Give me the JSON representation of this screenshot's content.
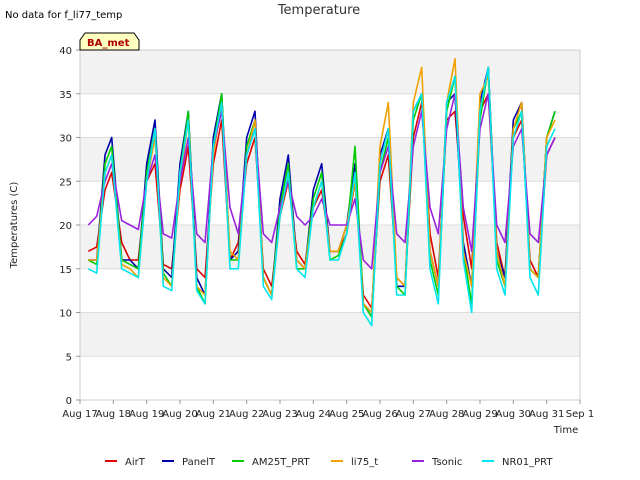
{
  "chart_data": {
    "type": "line",
    "title": "Temperature",
    "note": "No data for f_li77_temp",
    "badge": "BA_met",
    "xlabel": "Time",
    "ylabel": "Temperatures (C)",
    "ylim": [
      0,
      40
    ],
    "yticks": [
      0,
      5,
      10,
      15,
      20,
      25,
      30,
      35,
      40
    ],
    "xlim": [
      0,
      15
    ],
    "xticks": [
      {
        "x": 0,
        "label": "Aug 17"
      },
      {
        "x": 1,
        "label": "Aug 18"
      },
      {
        "x": 2,
        "label": "Aug 19"
      },
      {
        "x": 3,
        "label": "Aug 20"
      },
      {
        "x": 4,
        "label": "Aug 21"
      },
      {
        "x": 5,
        "label": "Aug 22"
      },
      {
        "x": 6,
        "label": "Aug 23"
      },
      {
        "x": 7,
        "label": "Aug 24"
      },
      {
        "x": 8,
        "label": "Aug 25"
      },
      {
        "x": 9,
        "label": "Aug 26"
      },
      {
        "x": 10,
        "label": "Aug 27"
      },
      {
        "x": 11,
        "label": "Aug 28"
      },
      {
        "x": 12,
        "label": "Aug 29"
      },
      {
        "x": 13,
        "label": "Aug 30"
      },
      {
        "x": 14,
        "label": "Aug 31"
      },
      {
        "x": 15,
        "label": "Sep 1"
      }
    ],
    "grid": true,
    "legend_position": "bottom",
    "series": [
      {
        "name": "AirT",
        "color": "#dd0000",
        "x": [
          0.25,
          0.5,
          0.75,
          0.95,
          1.25,
          1.5,
          1.75,
          2.0,
          2.25,
          2.5,
          2.75,
          3.0,
          3.25,
          3.5,
          3.75,
          4.0,
          4.25,
          4.5,
          4.75,
          5.0,
          5.25,
          5.5,
          5.75,
          6.0,
          6.25,
          6.5,
          6.75,
          7.0,
          7.25,
          7.5,
          7.75,
          8.0,
          8.25,
          8.5,
          8.75,
          9.0,
          9.25,
          9.5,
          9.75,
          10.0,
          10.25,
          10.5,
          10.75,
          11.0,
          11.25,
          11.5,
          11.75,
          12.0,
          12.25,
          12.5,
          12.75,
          13.0,
          13.25,
          13.5,
          13.75,
          14.0,
          14.25
        ],
        "y": [
          17,
          17.5,
          24,
          26,
          18,
          16,
          16,
          25,
          27,
          15.5,
          15,
          24,
          29,
          15,
          14,
          27,
          32,
          16,
          18,
          27,
          30,
          15,
          13,
          21,
          25,
          17,
          15.5,
          22,
          24,
          17,
          17,
          19,
          25,
          12,
          10.5,
          25,
          28,
          14,
          13,
          30,
          34,
          19,
          14,
          32,
          33,
          21,
          15,
          33,
          35,
          18,
          14,
          30,
          32,
          16,
          14,
          28,
          30
        ]
      },
      {
        "name": "PanelT",
        "color": "#0000aa",
        "x": [
          0.25,
          0.5,
          0.75,
          0.95,
          1.25,
          1.5,
          1.75,
          2.0,
          2.25,
          2.5,
          2.75,
          3.0,
          3.25,
          3.5,
          3.75,
          4.0,
          4.25,
          4.5,
          4.75,
          5.0,
          5.25,
          5.5,
          5.75,
          6.0,
          6.25,
          6.5,
          6.75,
          7.0,
          7.25,
          7.5,
          7.75,
          8.0,
          8.25,
          8.5,
          8.75,
          9.0,
          9.25,
          9.5,
          9.75,
          10.0,
          10.25,
          10.5,
          10.75,
          11.0,
          11.25,
          11.5,
          11.75,
          12.0,
          12.25,
          12.5,
          12.75,
          13.0,
          13.25,
          13.5,
          13.75,
          14.0,
          14.25
        ],
        "y": [
          16,
          16,
          28,
          30,
          16,
          16,
          15,
          27,
          32,
          15,
          14,
          27,
          33,
          14,
          12,
          30,
          35,
          16,
          17,
          30,
          33,
          14,
          12,
          23,
          28,
          16,
          15,
          24,
          27,
          17,
          17,
          20,
          27,
          11,
          10,
          28,
          31,
          13,
          13,
          33,
          35,
          17,
          13,
          34,
          35,
          18,
          13,
          34,
          38,
          17,
          14,
          32,
          34,
          15,
          14,
          30,
          33
        ]
      },
      {
        "name": "AM25T_PRT",
        "color": "#00cc00",
        "x": [
          0.25,
          0.5,
          0.75,
          0.95,
          1.25,
          1.5,
          1.75,
          2.0,
          2.25,
          2.5,
          2.75,
          3.0,
          3.25,
          3.5,
          3.75,
          4.0,
          4.25,
          4.5,
          4.75,
          5.0,
          5.25,
          5.5,
          5.75,
          6.0,
          6.25,
          6.5,
          6.75,
          7.0,
          7.25,
          7.5,
          7.75,
          8.0,
          8.25,
          8.5,
          8.75,
          9.0,
          9.25,
          9.5,
          9.75,
          10.0,
          10.25,
          10.5,
          10.75,
          11.0,
          11.25,
          11.5,
          11.75,
          12.0,
          12.25,
          12.5,
          12.75,
          13.0,
          13.25,
          13.5,
          13.75,
          14.0,
          14.25
        ],
        "y": [
          16,
          15.5,
          27,
          29,
          16,
          15.5,
          15,
          26,
          31,
          14.5,
          13,
          26,
          33,
          13,
          11,
          29,
          35,
          16,
          16,
          29,
          32,
          14,
          12,
          22,
          27,
          15,
          15,
          23,
          26,
          16,
          16.5,
          19,
          29,
          11,
          9.5,
          26,
          30,
          13,
          12,
          32,
          35,
          16,
          12,
          33,
          37,
          17,
          11,
          32,
          38,
          16,
          13,
          31,
          33,
          15,
          14,
          30,
          33
        ]
      },
      {
        "name": "li75_t",
        "color": "#f0a000",
        "x": [
          0.25,
          0.5,
          0.75,
          0.95,
          1.25,
          1.5,
          1.75,
          2.0,
          2.25,
          2.5,
          2.75,
          3.0,
          3.25,
          3.5,
          3.75,
          4.0,
          4.25,
          4.5,
          4.75,
          5.0,
          5.25,
          5.5,
          5.75,
          6.0,
          6.25,
          6.5,
          6.75,
          7.0,
          7.25,
          7.5,
          7.75,
          8.0,
          8.25,
          8.5,
          8.75,
          9.0,
          9.25,
          9.5,
          9.75,
          10.0,
          10.25,
          10.5,
          10.75,
          11.0,
          11.25,
          11.5,
          11.75,
          12.0,
          12.25,
          12.5,
          12.75,
          13.0,
          13.25,
          13.5,
          13.75,
          14.0,
          14.25
        ],
        "y": [
          16,
          16,
          26,
          28,
          15.5,
          15,
          14,
          25,
          30,
          14,
          13,
          25,
          32,
          13,
          12,
          28,
          34,
          17,
          16,
          28,
          32,
          14,
          12,
          21,
          26,
          16,
          15,
          22,
          25,
          17,
          17,
          20,
          25,
          11,
          10,
          29,
          34,
          14,
          13,
          34,
          38,
          17,
          13,
          34,
          39,
          17,
          13,
          35,
          37,
          17,
          13,
          31,
          34,
          15,
          14,
          30,
          32
        ]
      },
      {
        "name": "Tsonic",
        "color": "#9922dd",
        "x": [
          0.25,
          0.5,
          0.75,
          0.95,
          1.25,
          1.5,
          1.75,
          2.0,
          2.25,
          2.5,
          2.75,
          3.0,
          3.25,
          3.5,
          3.75,
          4.0,
          4.25,
          4.5,
          4.75,
          5.0,
          5.25,
          5.5,
          5.75,
          6.0,
          6.25,
          6.5,
          6.75,
          7.0,
          7.25,
          7.5,
          7.75,
          8.0,
          8.25,
          8.5,
          8.75,
          9.0,
          9.25,
          9.5,
          9.75,
          10.0,
          10.25,
          10.5,
          10.75,
          11.0,
          11.25,
          11.5,
          11.75,
          12.0,
          12.25,
          12.5,
          12.75,
          13.0,
          13.25,
          13.5,
          13.75,
          14.0,
          14.25
        ],
        "y": [
          20,
          21,
          25,
          27,
          20.5,
          20,
          19.5,
          25,
          28,
          19,
          18.5,
          25,
          30,
          19,
          18,
          29,
          33,
          22,
          19,
          28,
          31,
          19,
          18,
          22,
          25,
          21,
          20,
          21,
          23,
          20,
          20,
          20,
          23,
          16,
          15,
          26,
          29,
          19,
          18,
          29,
          33,
          22,
          19,
          31,
          35,
          22,
          17,
          31,
          35,
          20,
          18,
          29,
          31,
          19,
          18,
          28,
          30
        ]
      },
      {
        "name": "NR01_PRT",
        "color": "#00e5ee",
        "x": [
          0.25,
          0.5,
          0.75,
          0.95,
          1.25,
          1.5,
          1.75,
          2.0,
          2.25,
          2.5,
          2.75,
          3.0,
          3.25,
          3.5,
          3.75,
          4.0,
          4.25,
          4.5,
          4.75,
          5.0,
          5.25,
          5.5,
          5.75,
          6.0,
          6.25,
          6.5,
          6.75,
          7.0,
          7.25,
          7.5,
          7.75,
          8.0,
          8.25,
          8.5,
          8.75,
          9.0,
          9.25,
          9.5,
          9.75,
          10.0,
          10.25,
          10.5,
          10.75,
          11.0,
          11.25,
          11.5,
          11.75,
          12.0,
          12.25,
          12.5,
          12.75,
          13.0,
          13.25,
          13.5,
          13.75,
          14.0,
          14.25
        ],
        "y": [
          15,
          14.5,
          26,
          28,
          15,
          14.5,
          14,
          25,
          31,
          13,
          12.5,
          26,
          32,
          12.5,
          11,
          29,
          34,
          15,
          15,
          28,
          31,
          13,
          11.5,
          21,
          26,
          15,
          14,
          22,
          25,
          16,
          16,
          19,
          26,
          10,
          8.5,
          27,
          31,
          12,
          12,
          33,
          35,
          15,
          11,
          34,
          37,
          16,
          10,
          33,
          38,
          15,
          12,
          30,
          33,
          14,
          12,
          29,
          31
        ]
      }
    ]
  }
}
